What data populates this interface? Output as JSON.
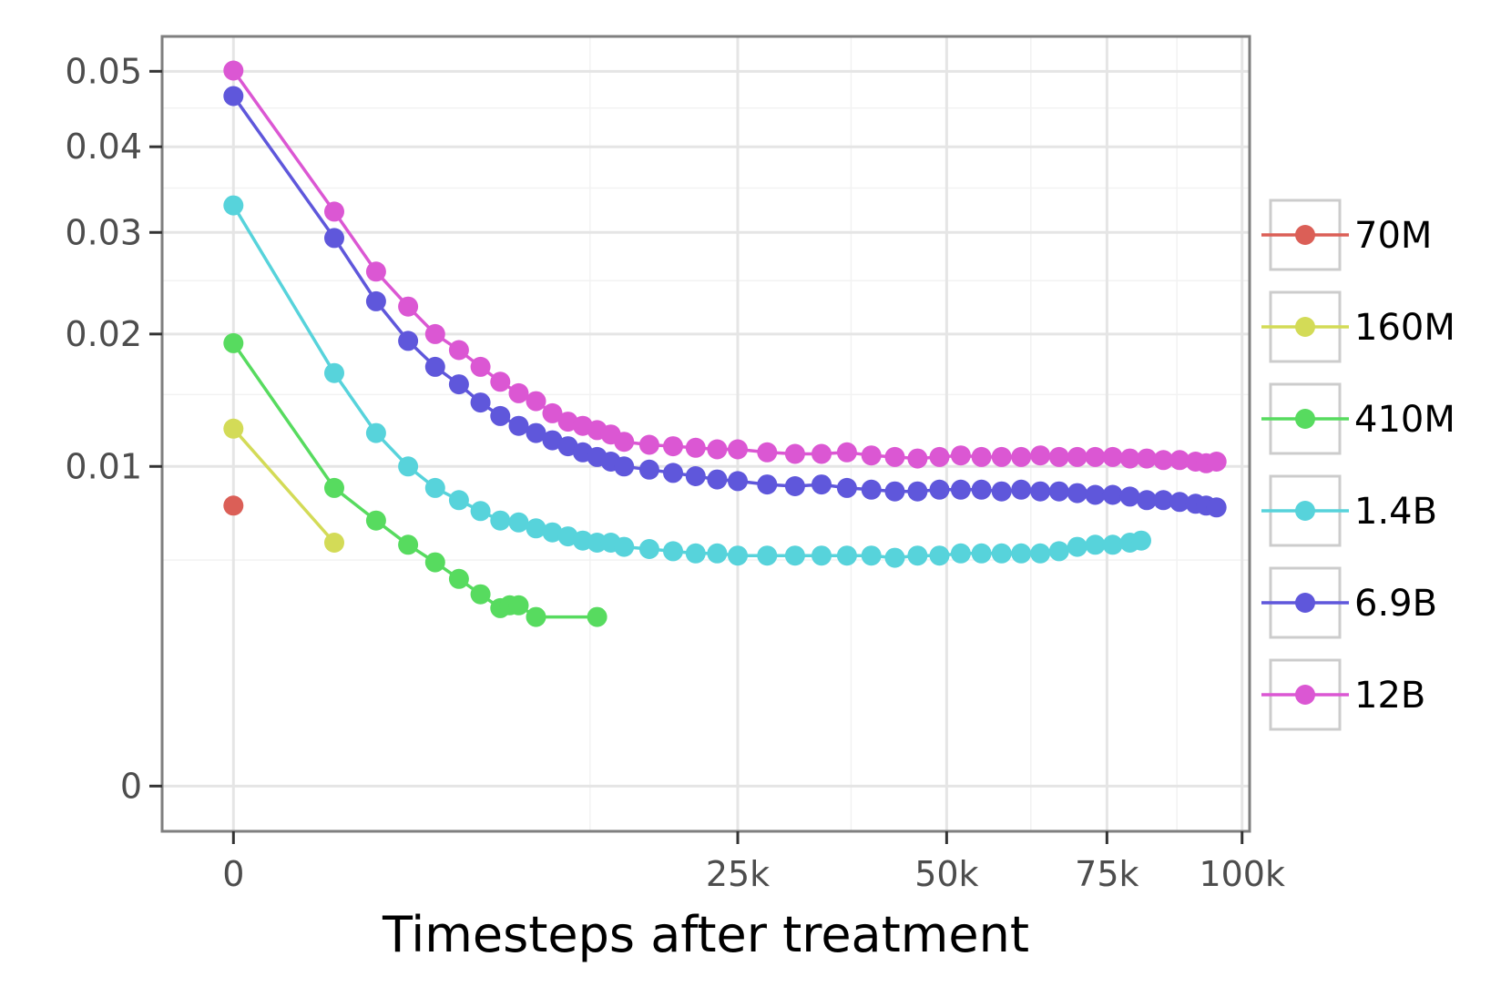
{
  "chart_data": {
    "type": "line",
    "xlabel": "Timesteps after treatment",
    "ylabel": "",
    "x_scale": "sqrt",
    "y_scale": "sqrt",
    "xlim": [
      -500,
      101500
    ],
    "ylim": [
      -0.0002,
      0.055
    ],
    "x_ticks": [
      0,
      25000,
      50000,
      75000,
      100000
    ],
    "x_tick_labels": [
      "0",
      "25k",
      "50k",
      "75k",
      "100k"
    ],
    "y_ticks": [
      0,
      0.01,
      0.02,
      0.03,
      0.04,
      0.05
    ],
    "y_tick_labels": [
      "0",
      "0.01",
      "0.02",
      "0.03",
      "0.04",
      "0.05"
    ],
    "grid": true,
    "legend_position": "right",
    "series": [
      {
        "name": "70M",
        "color": "#db5f57",
        "x": [
          0
        ],
        "y": [
          0.0077
        ]
      },
      {
        "name": "160M",
        "color": "#d3db57",
        "x": [
          0,
          1000
        ],
        "y": [
          0.0125,
          0.0058
        ]
      },
      {
        "name": "410M",
        "color": "#57db5f",
        "x": [
          0,
          1000,
          2000,
          3000,
          4000,
          5000,
          6000,
          7000,
          7500,
          8000,
          9000,
          13000
        ],
        "y": [
          0.0192,
          0.0087,
          0.0069,
          0.0057,
          0.0049,
          0.0042,
          0.0036,
          0.0031,
          0.0032,
          0.0032,
          0.0028,
          0.0028
        ]
      },
      {
        "name": "1.4B",
        "color": "#57d3db",
        "x": [
          0,
          1000,
          2000,
          3000,
          4000,
          5000,
          6000,
          7000,
          8000,
          9000,
          10000,
          11000,
          12000,
          13000,
          14000,
          15000,
          17000,
          19000,
          21000,
          23000,
          25000,
          28000,
          31000,
          34000,
          37000,
          40000,
          43000,
          46000,
          49000,
          52000,
          55000,
          58000,
          61000,
          64000,
          67000,
          70000,
          73000,
          76000,
          79000,
          81000
        ],
        "y": [
          0.033,
          0.0167,
          0.0122,
          0.01,
          0.0087,
          0.008,
          0.0074,
          0.0069,
          0.0068,
          0.0065,
          0.0063,
          0.0061,
          0.0059,
          0.0058,
          0.0058,
          0.0056,
          0.0055,
          0.0054,
          0.0053,
          0.0053,
          0.0052,
          0.0052,
          0.0052,
          0.0052,
          0.0052,
          0.0052,
          0.0051,
          0.0052,
          0.0052,
          0.0053,
          0.0053,
          0.0053,
          0.0053,
          0.0053,
          0.0054,
          0.0056,
          0.0057,
          0.0057,
          0.0058,
          0.0059
        ]
      },
      {
        "name": "6.9B",
        "color": "#5f57db",
        "x": [
          0,
          1000,
          2000,
          3000,
          4000,
          5000,
          6000,
          7000,
          8000,
          9000,
          10000,
          11000,
          12000,
          13000,
          14000,
          15000,
          17000,
          19000,
          21000,
          23000,
          25000,
          28000,
          31000,
          34000,
          37000,
          40000,
          43000,
          46000,
          49000,
          52000,
          55000,
          58000,
          61000,
          64000,
          67000,
          70000,
          73000,
          76000,
          79000,
          82000,
          85000,
          88000,
          91000,
          93000,
          95000
        ],
        "y": [
          0.0466,
          0.0294,
          0.023,
          0.0194,
          0.0172,
          0.0158,
          0.0144,
          0.0134,
          0.0127,
          0.0122,
          0.0117,
          0.0113,
          0.0109,
          0.0106,
          0.0103,
          0.01,
          0.0098,
          0.0096,
          0.0094,
          0.0092,
          0.0091,
          0.0089,
          0.0088,
          0.0089,
          0.0087,
          0.0086,
          0.0085,
          0.0085,
          0.0086,
          0.0086,
          0.0086,
          0.0085,
          0.0086,
          0.0085,
          0.0085,
          0.0084,
          0.0083,
          0.0083,
          0.0082,
          0.008,
          0.008,
          0.0079,
          0.0078,
          0.0077,
          0.0076
        ]
      },
      {
        "name": "12B",
        "color": "#db57d3",
        "x": [
          0,
          1000,
          2000,
          3000,
          4000,
          5000,
          6000,
          7000,
          8000,
          9000,
          10000,
          11000,
          12000,
          13000,
          14000,
          15000,
          17000,
          19000,
          21000,
          23000,
          25000,
          28000,
          31000,
          34000,
          37000,
          40000,
          43000,
          46000,
          49000,
          52000,
          55000,
          58000,
          61000,
          64000,
          67000,
          70000,
          73000,
          76000,
          79000,
          82000,
          85000,
          88000,
          91000,
          93000,
          95000
        ],
        "y": [
          0.0501,
          0.0323,
          0.0259,
          0.0225,
          0.02,
          0.0186,
          0.0172,
          0.016,
          0.0151,
          0.0145,
          0.0136,
          0.013,
          0.0127,
          0.0124,
          0.0121,
          0.0116,
          0.0114,
          0.0113,
          0.0112,
          0.0111,
          0.0111,
          0.0109,
          0.0108,
          0.0108,
          0.0109,
          0.0107,
          0.0106,
          0.0105,
          0.0106,
          0.0107,
          0.0106,
          0.0106,
          0.0106,
          0.0107,
          0.0106,
          0.0106,
          0.0106,
          0.0106,
          0.0105,
          0.0105,
          0.0104,
          0.0104,
          0.0103,
          0.0102,
          0.0103
        ]
      }
    ]
  }
}
